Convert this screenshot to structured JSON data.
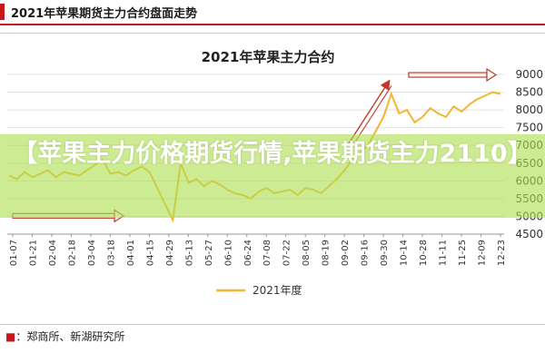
{
  "header": {
    "title": "2021年苹果期货主力合约盘面走势"
  },
  "banner": {
    "text": "【苹果主力价格期货行情,苹果期货主力2110】"
  },
  "source": {
    "text": "：郑商所、新湖研究所"
  },
  "colors": {
    "line": "#f2b632",
    "arrow": "#c0392b",
    "accent": "#c4161c",
    "banner": "#afde50"
  },
  "chart_data": {
    "type": "line",
    "title": "2021年苹果主力合约",
    "xlabel": "",
    "ylabel": "",
    "ylim": [
      4500,
      9000
    ],
    "yticks": [
      4500,
      5000,
      5500,
      6000,
      6500,
      7000,
      7500,
      8000,
      8500,
      9000
    ],
    "grid": false,
    "legend": "bottom-center",
    "x_tick_labels": [
      "01-07",
      "01-21",
      "02-04",
      "02-18",
      "03-04",
      "03-18",
      "04-01",
      "04-15",
      "04-29",
      "05-13",
      "05-27",
      "06-10",
      "06-24",
      "07-08",
      "07-22",
      "08-05",
      "08-19",
      "09-02",
      "09-16",
      "09-30",
      "10-14",
      "10-28",
      "11-11",
      "11-25",
      "12-09",
      "12-23"
    ],
    "series": [
      {
        "name": "2021年度",
        "values": [
          6150,
          6050,
          6250,
          6100,
          6200,
          6300,
          6100,
          6250,
          6200,
          6150,
          6300,
          6450,
          6600,
          6200,
          6250,
          6150,
          6300,
          6400,
          6250,
          5800,
          5350,
          4900,
          6500,
          5950,
          6050,
          5850,
          6000,
          5900,
          5750,
          5650,
          5600,
          5500,
          5700,
          5800,
          5650,
          5700,
          5750,
          5600,
          5800,
          5750,
          5650,
          5850,
          6050,
          6300,
          6600,
          6800,
          7000,
          7400,
          7800,
          8450,
          7900,
          8000,
          7650,
          7800,
          8050,
          7900,
          7800,
          8100,
          7950,
          8150,
          8300,
          8400,
          8500,
          8450
        ]
      }
    ],
    "annotations": [
      "trend-arrow-flat-left",
      "trend-arrow-rising",
      "trend-arrow-flat-right"
    ]
  }
}
